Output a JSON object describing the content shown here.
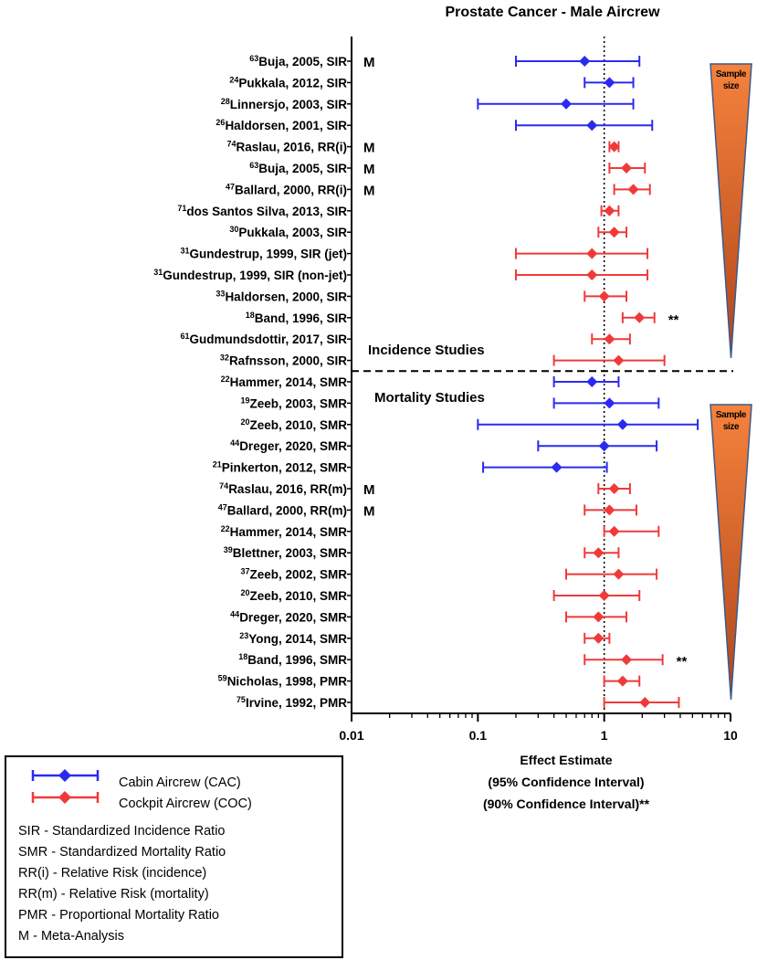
{
  "chart_data": {
    "type": "forest",
    "title": "Prostate Cancer - Male Aircrew",
    "xscale": "log",
    "xlim": [
      0.01,
      10
    ],
    "xticks": [
      "0.01",
      "0.1",
      "1",
      "10"
    ],
    "reference_line": 1,
    "xlabel_lines": [
      "Effect Estimate",
      "(95%  Confidence  Interval)",
      "(90% Confidence  Interval)**"
    ],
    "sections": {
      "incidence": "Incidence Studies",
      "mortality": "Mortality Studies"
    },
    "sample_size_label": [
      "Sample",
      "size"
    ],
    "colors": {
      "cabin": "#2b2bf0",
      "cockpit": "#f03a3a",
      "triangle_top": "#f5823c",
      "triangle_bottom": "#b0461a",
      "triangle_edge": "#3a5a8c"
    },
    "studies": [
      {
        "ref": "63",
        "label": "Buja, 2005, SIR",
        "meta": "M",
        "group": "cabin",
        "est": 0.7,
        "lo": 0.2,
        "hi": 1.9,
        "note": ""
      },
      {
        "ref": "24",
        "label": "Pukkala, 2012, SIR",
        "meta": "",
        "group": "cabin",
        "est": 1.1,
        "lo": 0.7,
        "hi": 1.7,
        "note": ""
      },
      {
        "ref": "28",
        "label": "Linnersjo, 2003, SIR",
        "meta": "",
        "group": "cabin",
        "est": 0.5,
        "lo": 0.1,
        "hi": 1.7,
        "note": ""
      },
      {
        "ref": "26",
        "label": "Haldorsen, 2001, SIR",
        "meta": "",
        "group": "cabin",
        "est": 0.8,
        "lo": 0.2,
        "hi": 2.4,
        "note": ""
      },
      {
        "ref": "74",
        "label": "Raslau, 2016, RR(i)",
        "meta": "M",
        "group": "cockpit",
        "est": 1.2,
        "lo": 1.1,
        "hi": 1.3,
        "note": ""
      },
      {
        "ref": "63",
        "label": "Buja, 2005, SIR",
        "meta": "M",
        "group": "cockpit",
        "est": 1.5,
        "lo": 1.1,
        "hi": 2.1,
        "note": ""
      },
      {
        "ref": "47",
        "label": "Ballard, 2000, RR(i)",
        "meta": "M",
        "group": "cockpit",
        "est": 1.7,
        "lo": 1.2,
        "hi": 2.3,
        "note": ""
      },
      {
        "ref": "71",
        "label": "dos Santos Silva, 2013, SIR",
        "meta": "",
        "group": "cockpit",
        "est": 1.1,
        "lo": 0.95,
        "hi": 1.3,
        "note": ""
      },
      {
        "ref": "30",
        "label": "Pukkala, 2003, SIR",
        "meta": "",
        "group": "cockpit",
        "est": 1.2,
        "lo": 0.9,
        "hi": 1.5,
        "note": ""
      },
      {
        "ref": "31",
        "label": "Gundestrup, 1999, SIR (jet)",
        "meta": "",
        "group": "cockpit",
        "est": 0.8,
        "lo": 0.2,
        "hi": 2.2,
        "note": ""
      },
      {
        "ref": "31",
        "label": "Gundestrup, 1999, SIR (non-jet)",
        "meta": "",
        "group": "cockpit",
        "est": 0.8,
        "lo": 0.2,
        "hi": 2.2,
        "note": ""
      },
      {
        "ref": "33",
        "label": "Haldorsen, 2000, SIR",
        "meta": "",
        "group": "cockpit",
        "est": 1.0,
        "lo": 0.7,
        "hi": 1.5,
        "note": ""
      },
      {
        "ref": "18",
        "label": "Band, 1996, SIR",
        "meta": "",
        "group": "cockpit",
        "est": 1.9,
        "lo": 1.4,
        "hi": 2.5,
        "note": "**"
      },
      {
        "ref": "61",
        "label": "Gudmundsdottir, 2017, SIR",
        "meta": "",
        "group": "cockpit",
        "est": 1.1,
        "lo": 0.8,
        "hi": 1.6,
        "note": ""
      },
      {
        "ref": "32",
        "label": "Rafnsson, 2000, SIR",
        "meta": "",
        "group": "cockpit",
        "est": 1.3,
        "lo": 0.4,
        "hi": 3.0,
        "note": ""
      },
      {
        "ref": "22",
        "label": "Hammer, 2014, SMR",
        "meta": "",
        "group": "cabin",
        "est": 0.8,
        "lo": 0.4,
        "hi": 1.3,
        "note": ""
      },
      {
        "ref": "19",
        "label": "Zeeb, 2003, SMR",
        "meta": "",
        "group": "cabin",
        "est": 1.1,
        "lo": 0.4,
        "hi": 2.7,
        "note": ""
      },
      {
        "ref": "20",
        "label": "Zeeb, 2010, SMR",
        "meta": "",
        "group": "cabin",
        "est": 1.4,
        "lo": 0.1,
        "hi": 5.5,
        "note": ""
      },
      {
        "ref": "44",
        "label": "Dreger, 2020, SMR",
        "meta": "",
        "group": "cabin",
        "est": 1.0,
        "lo": 0.3,
        "hi": 2.6,
        "note": ""
      },
      {
        "ref": "21",
        "label": "Pinkerton, 2012, SMR",
        "meta": "",
        "group": "cabin",
        "est": 0.42,
        "lo": 0.11,
        "hi": 1.05,
        "note": ""
      },
      {
        "ref": "74",
        "label": "Raslau, 2016, RR(m)",
        "meta": "M",
        "group": "cockpit",
        "est": 1.2,
        "lo": 0.9,
        "hi": 1.6,
        "note": ""
      },
      {
        "ref": "47",
        "label": "Ballard, 2000, RR(m)",
        "meta": "M",
        "group": "cockpit",
        "est": 1.1,
        "lo": 0.7,
        "hi": 1.8,
        "note": ""
      },
      {
        "ref": "22",
        "label": "Hammer, 2014, SMR",
        "meta": "",
        "group": "cockpit",
        "est": 1.2,
        "lo": 1.0,
        "hi": 2.7,
        "note": ""
      },
      {
        "ref": "39",
        "label": "Blettner, 2003, SMR",
        "meta": "",
        "group": "cockpit",
        "est": 0.9,
        "lo": 0.7,
        "hi": 1.3,
        "note": ""
      },
      {
        "ref": "37",
        "label": "Zeeb, 2002, SMR",
        "meta": "",
        "group": "cockpit",
        "est": 1.3,
        "lo": 0.5,
        "hi": 2.6,
        "note": ""
      },
      {
        "ref": "20",
        "label": "Zeeb, 2010, SMR",
        "meta": "",
        "group": "cockpit",
        "est": 1.0,
        "lo": 0.4,
        "hi": 1.9,
        "note": ""
      },
      {
        "ref": "44",
        "label": "Dreger, 2020, SMR",
        "meta": "",
        "group": "cockpit",
        "est": 0.9,
        "lo": 0.5,
        "hi": 1.5,
        "note": ""
      },
      {
        "ref": "23",
        "label": "Yong, 2014, SMR",
        "meta": "",
        "group": "cockpit",
        "est": 0.9,
        "lo": 0.7,
        "hi": 1.1,
        "note": ""
      },
      {
        "ref": "18",
        "label": "Band, 1996, SMR",
        "meta": "",
        "group": "cockpit",
        "est": 1.5,
        "lo": 0.7,
        "hi": 2.9,
        "note": "**"
      },
      {
        "ref": "59",
        "label": "Nicholas, 1998, PMR",
        "meta": "",
        "group": "cockpit",
        "est": 1.4,
        "lo": 1.0,
        "hi": 1.9,
        "note": ""
      },
      {
        "ref": "75",
        "label": "Irvine, 1992, PMR",
        "meta": "",
        "group": "cockpit",
        "est": 2.1,
        "lo": 1.0,
        "hi": 3.9,
        "note": ""
      }
    ]
  },
  "legend": {
    "cabin": "Cabin Aircrew  (CAC)",
    "cockpit": "Cockpit Aircrew  (COC)",
    "abbreviations": [
      "SIR - Standardized Incidence Ratio",
      "SMR - Standardized Mortality Ratio",
      "RR(i) - Relative Risk (incidence)",
      "RR(m) - Relative Risk  (mortality)",
      "PMR - Proportional Mortality Ratio",
      "M - Meta-Analysis"
    ]
  }
}
